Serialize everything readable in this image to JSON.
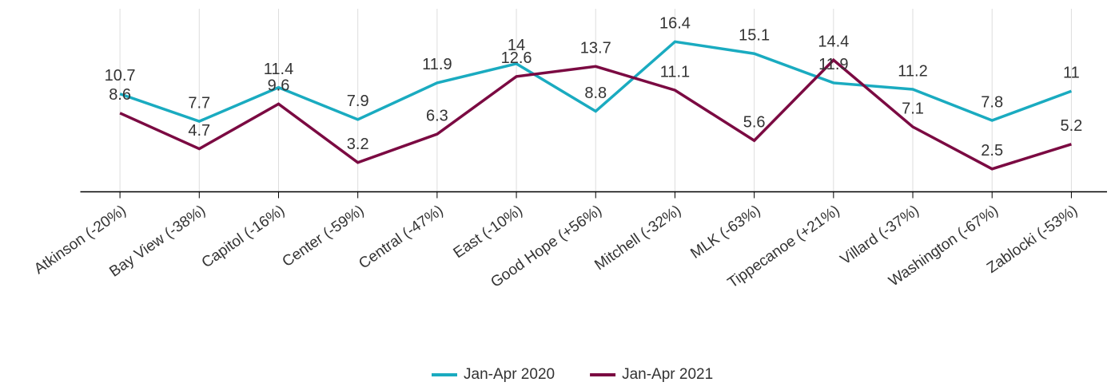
{
  "chart_data": {
    "type": "line",
    "categories": [
      "Atkinson (-20%)",
      "Bay View (-38%)",
      "Capitol (-16%)",
      "Center (-59%)",
      "Central (-47%)",
      "East (-10%)",
      "Good Hope (+56%)",
      "Mitchell (-32%)",
      "MLK (-63%)",
      "Tippecanoe (+21%)",
      "Villard (-37%)",
      "Washington (-67%)",
      "Zablocki (-53%)"
    ],
    "series": [
      {
        "name": "Jan-Apr 2020",
        "color": "#1aabc0",
        "values": [
          10.7,
          7.7,
          11.4,
          7.9,
          11.9,
          14,
          8.8,
          16.4,
          15.1,
          11.9,
          11.2,
          7.8,
          11
        ]
      },
      {
        "name": "Jan-Apr 2021",
        "color": "#7b0a42",
        "values": [
          8.6,
          4.7,
          9.6,
          3.2,
          6.3,
          12.6,
          13.7,
          11.1,
          5.6,
          14.4,
          7.1,
          2.5,
          5.2
        ]
      }
    ],
    "ylim": [
      0,
      20
    ],
    "grid": true,
    "legend": "bottom"
  }
}
